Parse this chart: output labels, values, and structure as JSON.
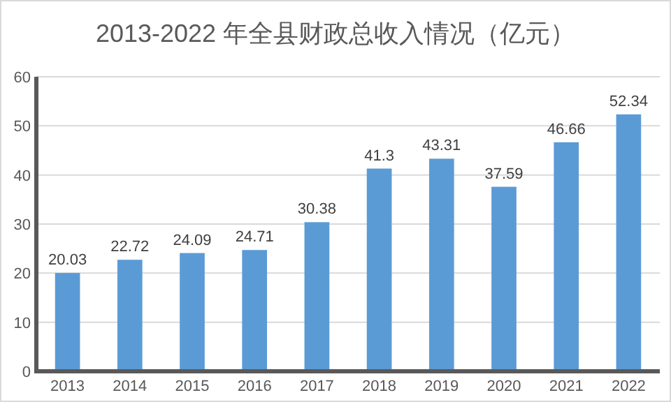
{
  "chart_data": {
    "type": "bar",
    "title": "2013-2022 年全县财政总收入情况（亿元）",
    "categories": [
      "2013",
      "2014",
      "2015",
      "2016",
      "2017",
      "2018",
      "2019",
      "2020",
      "2021",
      "2022"
    ],
    "values": [
      20.03,
      22.72,
      24.09,
      24.71,
      30.38,
      41.3,
      43.31,
      37.59,
      46.66,
      52.34
    ],
    "color": "#5b9bd5",
    "ylim": [
      0,
      60
    ],
    "yticks": [
      0,
      10,
      20,
      30,
      40,
      50,
      60
    ],
    "grid": "y",
    "data_labels": true
  }
}
